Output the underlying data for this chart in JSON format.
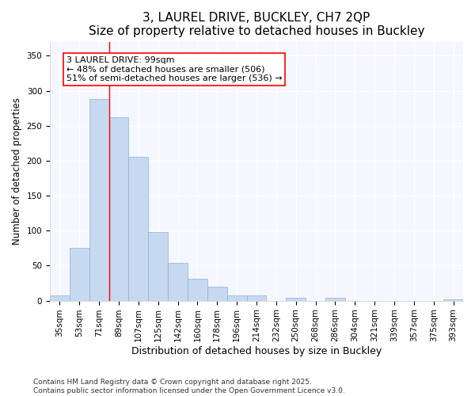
{
  "title": "3, LAUREL DRIVE, BUCKLEY, CH7 2QP",
  "subtitle": "Size of property relative to detached houses in Buckley",
  "xlabel": "Distribution of detached houses by size in Buckley",
  "ylabel": "Number of detached properties",
  "bar_color": "#c6d9f0",
  "bar_edge_color": "#8ab0d8",
  "background_color": "#ffffff",
  "plot_bg_color": "#f5f7ff",
  "grid_color": "#ffffff",
  "categories": [
    "35sqm",
    "53sqm",
    "71sqm",
    "89sqm",
    "107sqm",
    "125sqm",
    "142sqm",
    "160sqm",
    "178sqm",
    "196sqm",
    "214sqm",
    "232sqm",
    "250sqm",
    "268sqm",
    "286sqm",
    "304sqm",
    "321sqm",
    "339sqm",
    "357sqm",
    "375sqm",
    "393sqm"
  ],
  "values": [
    8,
    75,
    288,
    262,
    205,
    98,
    54,
    31,
    20,
    7,
    8,
    0,
    4,
    0,
    4,
    0,
    0,
    0,
    0,
    0,
    2
  ],
  "ylim": [
    0,
    370
  ],
  "yticks": [
    0,
    50,
    100,
    150,
    200,
    250,
    300,
    350
  ],
  "annotation_line1": "3 LAUREL DRIVE: 99sqm",
  "annotation_line2": "← 48% of detached houses are smaller (506)",
  "annotation_line3": "51% of semi-detached houses are larger (536) →",
  "vline_bin_index": 2.5,
  "footer_text": "Contains HM Land Registry data © Crown copyright and database right 2025.\nContains public sector information licensed under the Open Government Licence v3.0.",
  "title_fontsize": 11,
  "subtitle_fontsize": 9.5,
  "xlabel_fontsize": 9,
  "ylabel_fontsize": 8.5,
  "tick_fontsize": 7.5,
  "annotation_fontsize": 8,
  "footer_fontsize": 6.5
}
